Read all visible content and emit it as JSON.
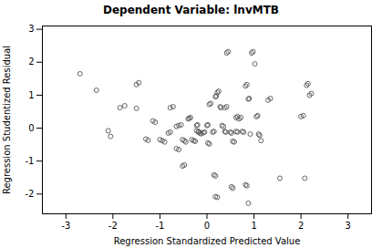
{
  "chart_data": {
    "type": "scatter",
    "title": "Dependent Variable: lnvMTB",
    "xlabel": "Regression Standardized Predicted Value",
    "ylabel": "Regression Studentized Residual",
    "xlim": [
      -3.5,
      3.5
    ],
    "ylim": [
      -2.6,
      3.1
    ],
    "xticks": [
      -3,
      -2,
      -1,
      0,
      1,
      2,
      3
    ],
    "yticks": [
      -2,
      -1,
      0,
      1,
      2,
      3
    ],
    "color": "#555555",
    "marker": "circle",
    "grid": false,
    "x": [
      -2.7,
      -2.35,
      -2.1,
      -2.05,
      -1.85,
      -1.75,
      -1.5,
      -1.45,
      -1.3,
      -1.25,
      -1.15,
      -1.1,
      -1.0,
      -0.95,
      -0.9,
      -0.78,
      -0.72,
      -0.65,
      -0.6,
      -0.55,
      -0.52,
      -0.48,
      -0.45,
      -0.4,
      -0.38,
      -0.35,
      -0.32,
      -0.28,
      -0.25,
      -0.22,
      -0.2,
      -0.18,
      -0.15,
      -0.12,
      -0.08,
      -0.05,
      0.0,
      0.02,
      0.05,
      0.08,
      0.12,
      0.15,
      0.18,
      0.2,
      0.22,
      0.25,
      0.28,
      0.3,
      0.32,
      0.35,
      0.38,
      0.4,
      0.42,
      0.45,
      0.5,
      0.52,
      0.55,
      0.58,
      0.62,
      0.65,
      0.68,
      0.72,
      0.75,
      0.78,
      0.82,
      0.85,
      0.88,
      0.9,
      0.92,
      0.95,
      0.98,
      1.02,
      1.05,
      1.08,
      1.1,
      1.12,
      1.15,
      1.55,
      2.0,
      2.05,
      2.08,
      2.12,
      2.15,
      2.18,
      2.22,
      0.18,
      0.22,
      0.52,
      0.55,
      0.82,
      0.85,
      0.88,
      0.15,
      0.18,
      -0.48,
      -0.52,
      -0.22,
      -0.18,
      0.02,
      0.05,
      0.62,
      0.65,
      -0.82,
      -0.78,
      -1.5,
      1.3,
      1.35,
      -0.65,
      -0.6,
      0.38,
      0.42
    ],
    "values": [
      1.65,
      1.15,
      -0.08,
      -0.25,
      0.62,
      0.68,
      1.32,
      1.38,
      -0.33,
      -0.37,
      0.22,
      0.18,
      -0.35,
      -0.38,
      -0.42,
      0.62,
      0.65,
      0.05,
      0.08,
      0.1,
      -0.35,
      -0.38,
      -0.42,
      0.28,
      0.3,
      0.32,
      -0.35,
      -0.38,
      -0.4,
      0.08,
      0.1,
      -0.12,
      -0.15,
      -0.17,
      -0.14,
      -0.12,
      0.08,
      0.1,
      0.72,
      0.75,
      -0.12,
      -0.1,
      0.95,
      0.98,
      1.08,
      1.12,
      0.65,
      0.62,
      0.08,
      0.05,
      -0.1,
      -0.12,
      2.28,
      2.32,
      -0.12,
      -0.15,
      -0.4,
      -0.42,
      -0.1,
      -0.12,
      0.28,
      0.32,
      -0.1,
      -0.12,
      1.28,
      1.32,
      0.88,
      0.9,
      -0.18,
      2.28,
      2.32,
      1.95,
      0.35,
      0.38,
      -0.18,
      -0.22,
      -0.38,
      -1.52,
      0.35,
      0.38,
      -1.52,
      1.3,
      1.35,
      1.0,
      1.05,
      -2.08,
      -2.1,
      -1.78,
      -1.82,
      -1.72,
      -1.75,
      -2.28,
      -1.42,
      -1.45,
      -1.12,
      -1.15,
      -0.08,
      -0.1,
      -0.45,
      -0.48,
      0.32,
      0.35,
      -0.15,
      -0.12,
      0.6,
      0.85,
      0.9,
      -0.62,
      -0.65,
      0.62,
      0.65
    ]
  }
}
